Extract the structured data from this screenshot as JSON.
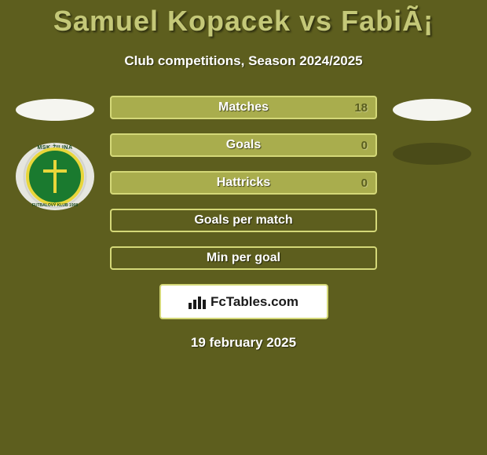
{
  "header": {
    "title": "Samuel Kopacek vs FabiÃ¡",
    "subtitle": "Club competitions, Season 2024/2025"
  },
  "team_logo": {
    "top_text": "MSK ŽILINA",
    "bottom_text": "FUTBALOVÝ KLUB 1908",
    "outer_bg": "#e6e6e0",
    "inner_bg": "#1a7a2f",
    "border_color": "#e8d63a"
  },
  "stats": [
    {
      "label": "Matches",
      "value": "18",
      "filled": true
    },
    {
      "label": "Goals",
      "value": "0",
      "filled": true
    },
    {
      "label": "Hattricks",
      "value": "0",
      "filled": true
    },
    {
      "label": "Goals per match",
      "value": "",
      "filled": false
    },
    {
      "label": "Min per goal",
      "value": "",
      "filled": false
    }
  ],
  "branding": {
    "label": "FcTables.com"
  },
  "date": "19 february 2025",
  "colors": {
    "page_bg": "#5d5e1e",
    "title_color": "#c4c878",
    "row_border": "#d4d878",
    "row_fill": "#a9ad4d",
    "text_white": "#ffffff",
    "avatar_light": "#f5f5f0",
    "avatar_dark": "#4a4b18"
  },
  "typography": {
    "title_fontsize": 36,
    "subtitle_fontsize": 17,
    "stat_label_fontsize": 16,
    "date_fontsize": 17,
    "brand_fontsize": 17
  }
}
